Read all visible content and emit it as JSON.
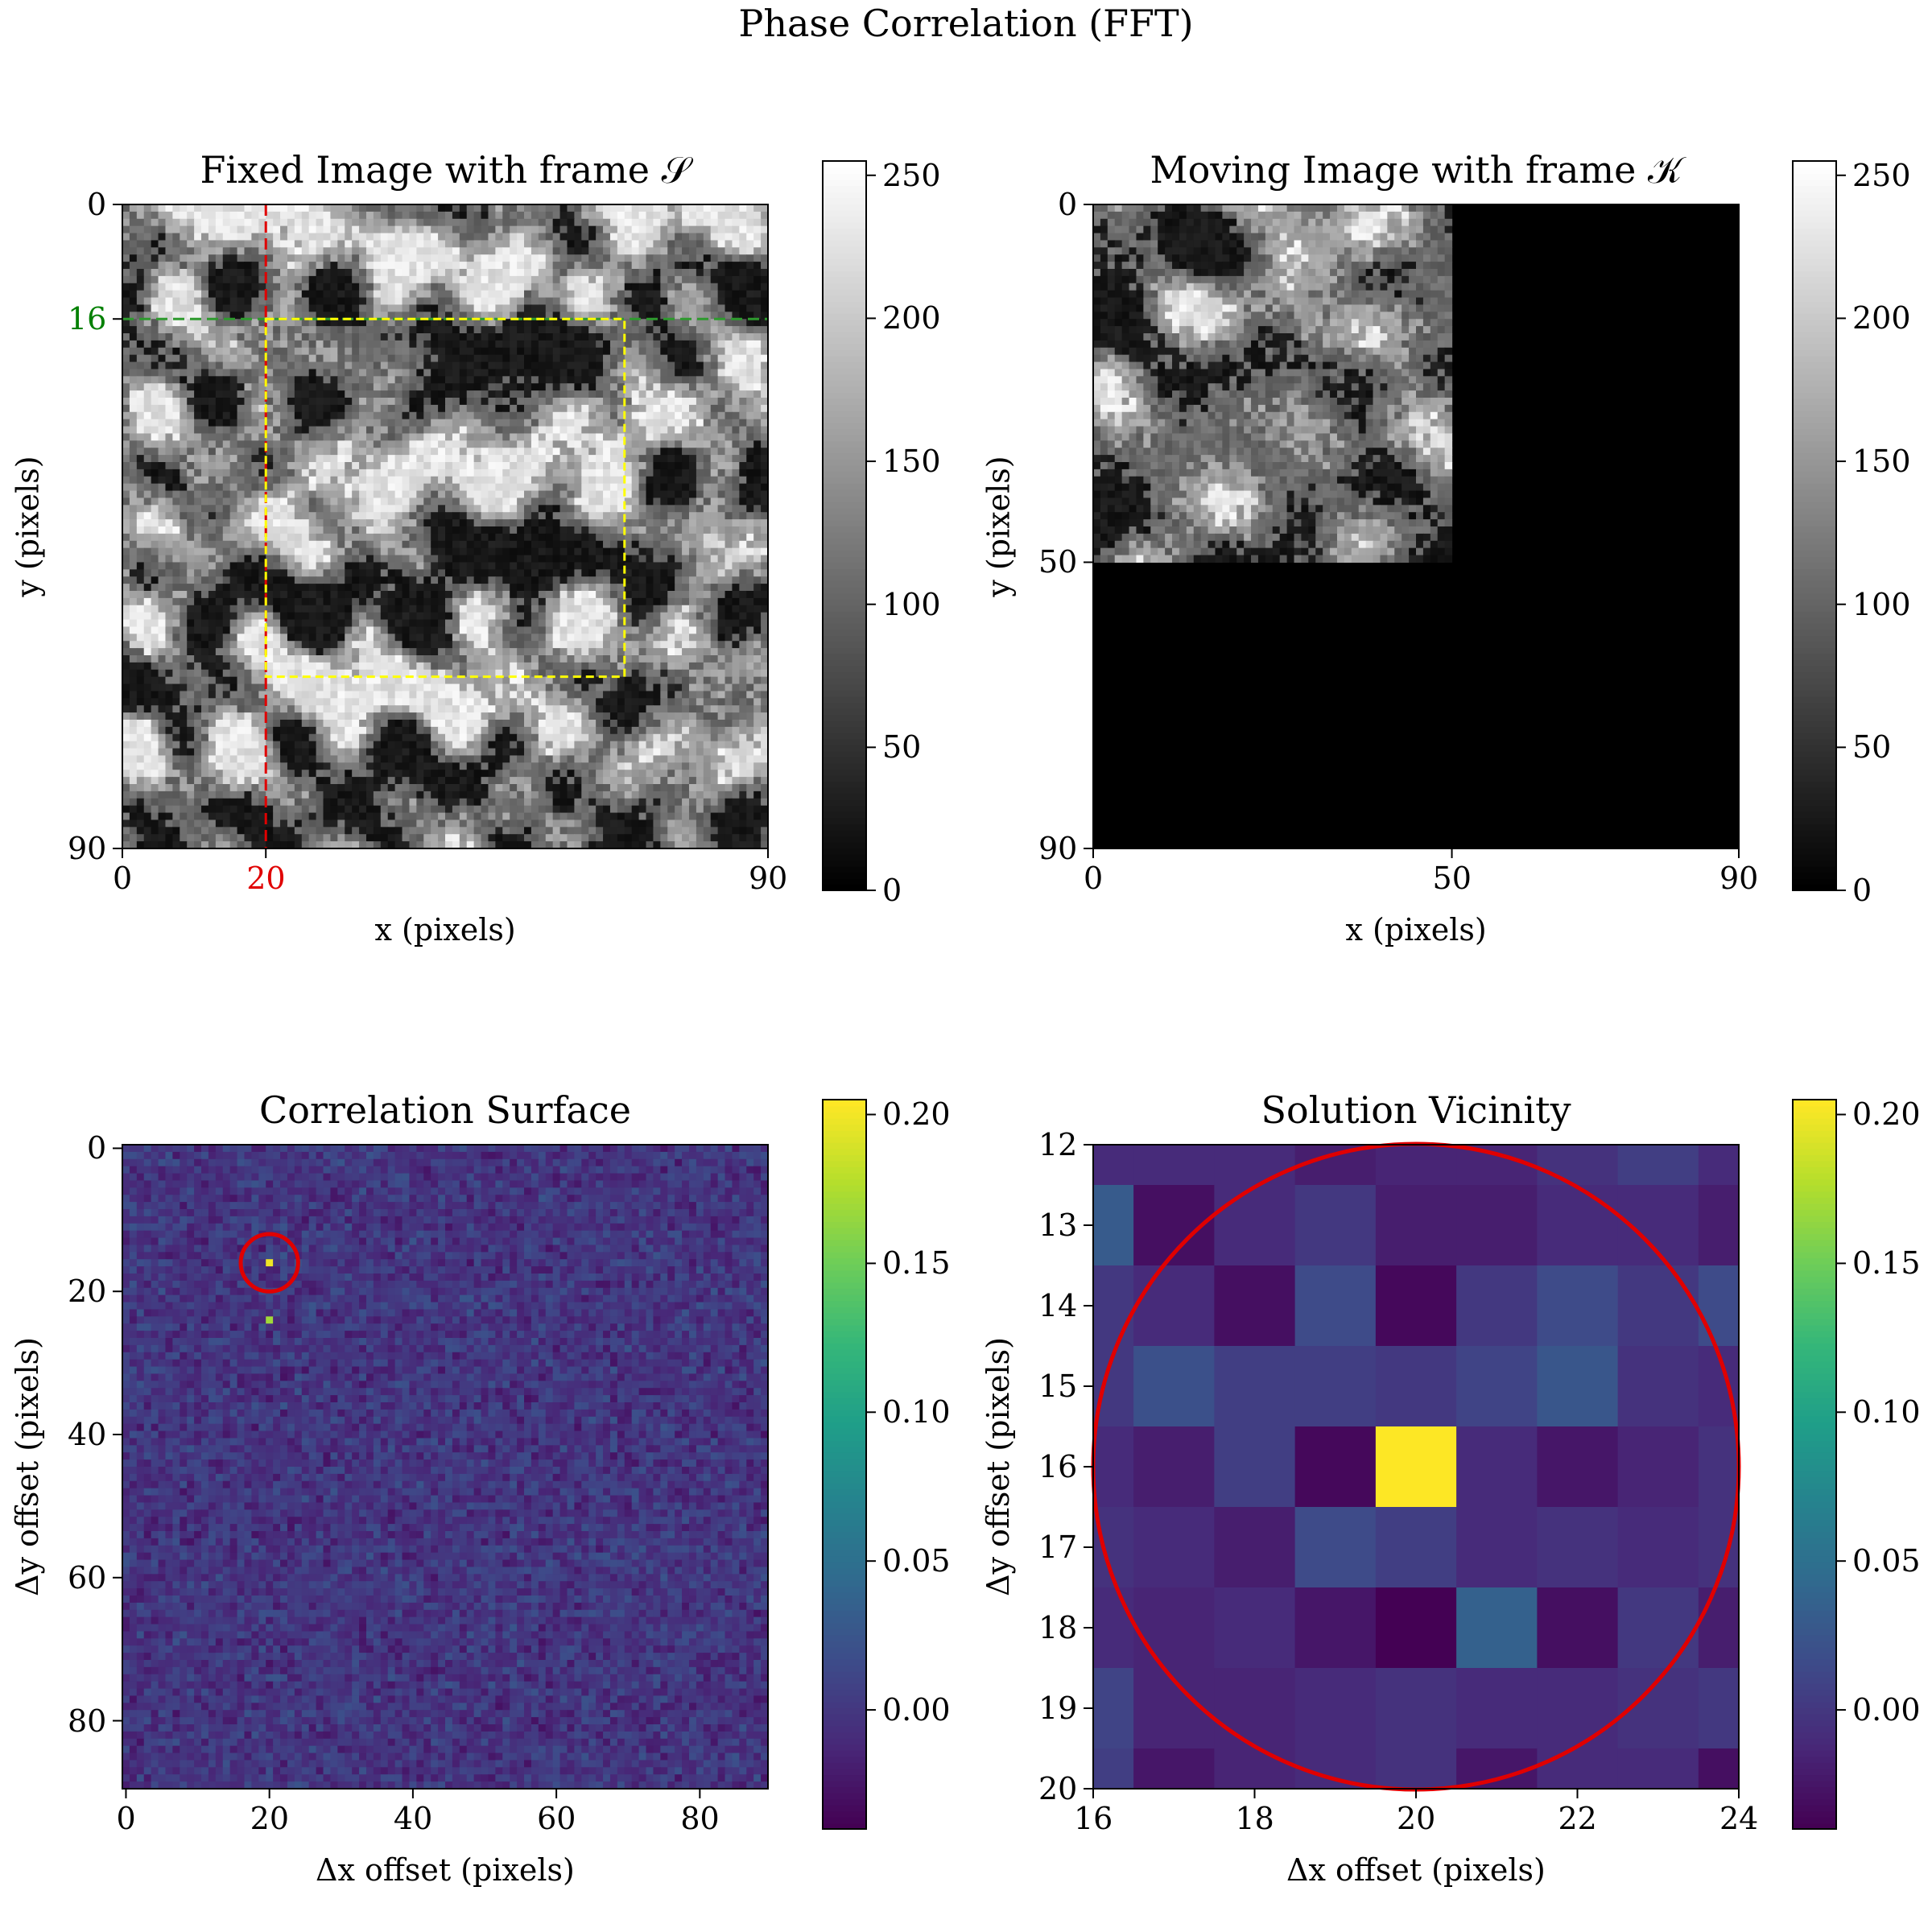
{
  "figure": {
    "suptitle": "Phase Correlation (FFT)"
  },
  "chart_data": [
    {
      "type": "heatmap",
      "panel": "fixed",
      "title": "Fixed Image with frame 𝒮",
      "xlabel": "x (pixels)",
      "ylabel": "y (pixels)",
      "xlim": [
        0,
        90
      ],
      "ylim": [
        90,
        0
      ],
      "xticks": [
        0,
        20,
        90
      ],
      "yticks": [
        0,
        16,
        90
      ],
      "colormap": "gray",
      "colorbar": {
        "vmin": 0,
        "vmax": 255,
        "ticks": [
          0,
          50,
          100,
          150,
          200,
          250
        ]
      },
      "highlighted_ticks": {
        "x": {
          "value": 20,
          "color": "#e00000"
        },
        "y": {
          "value": 16,
          "color": "#008000"
        }
      },
      "overlays": {
        "vline": {
          "x": 20,
          "color": "#e00000"
        },
        "hline": {
          "y": 16,
          "color": "#2e9a2e"
        },
        "frame": {
          "x": [
            20,
            70
          ],
          "y": [
            16,
            66
          ],
          "color": "#ffff00"
        }
      },
      "description": "90x90 grayscale textured image"
    },
    {
      "type": "heatmap",
      "panel": "moving",
      "title": "Moving Image with frame 𝒦",
      "xlabel": "x (pixels)",
      "ylabel": "y (pixels)",
      "xlim": [
        0,
        90
      ],
      "ylim": [
        90,
        0
      ],
      "xticks": [
        0,
        50,
        90
      ],
      "yticks": [
        0,
        50,
        90
      ],
      "colormap": "gray",
      "colorbar": {
        "vmin": 0,
        "vmax": 255,
        "ticks": [
          0,
          50,
          100,
          150,
          200,
          250
        ]
      },
      "content_region": {
        "x": [
          0,
          50
        ],
        "y": [
          0,
          50
        ]
      },
      "description": "50x50 crop of the fixed image in the top-left, rest zero"
    },
    {
      "type": "heatmap",
      "panel": "correlation",
      "title": "Correlation Surface",
      "xlabel": "Δx offset (pixels)",
      "ylabel": "Δy offset (pixels)",
      "xlim": [
        0,
        90
      ],
      "ylim": [
        90,
        0
      ],
      "xticks": [
        0,
        20,
        40,
        60,
        80
      ],
      "yticks": [
        0,
        20,
        40,
        60,
        80
      ],
      "colormap": "viridis",
      "colorbar": {
        "vmin": -0.04,
        "vmax": 0.205,
        "ticks": [
          0.0,
          0.05,
          0.1,
          0.15,
          0.2
        ],
        "ticklabels": [
          "0.00",
          "0.05",
          "0.10",
          "0.15",
          "0.20"
        ]
      },
      "peaks": [
        {
          "dx": 20,
          "dy": 16,
          "value": 0.2
        },
        {
          "dx": 20,
          "dy": 24,
          "value": 0.17
        }
      ],
      "circle": {
        "cx": 20,
        "cy": 16,
        "r": 4,
        "color": "#e00000"
      }
    },
    {
      "type": "heatmap",
      "panel": "vicinity",
      "title": "Solution Vicinity",
      "xlabel": "Δx offset (pixels)",
      "ylabel": "Δy offset (pixels)",
      "xlim": [
        16,
        24
      ],
      "ylim": [
        20,
        12
      ],
      "xticks": [
        16,
        18,
        20,
        22,
        24
      ],
      "yticks": [
        12,
        13,
        14,
        15,
        16,
        17,
        18,
        19,
        20
      ],
      "colormap": "viridis",
      "colorbar": {
        "vmin": -0.04,
        "vmax": 0.205,
        "ticks": [
          0.0,
          0.05,
          0.1,
          0.15,
          0.2
        ],
        "ticklabels": [
          "0.00",
          "0.05",
          "0.10",
          "0.15",
          "0.20"
        ]
      },
      "grid_x": [
        16,
        17,
        18,
        19,
        20,
        21,
        22,
        23,
        24
      ],
      "grid_y": [
        12,
        13,
        14,
        15,
        16,
        17,
        18,
        19,
        20
      ],
      "values": [
        [
          -0.01,
          -0.01,
          -0.01,
          -0.02,
          -0.015,
          -0.015,
          -0.005,
          0.005,
          -0.01
        ],
        [
          0.03,
          -0.03,
          -0.01,
          0.0,
          -0.02,
          -0.02,
          -0.01,
          -0.01,
          -0.02
        ],
        [
          0.0,
          -0.01,
          -0.03,
          0.015,
          -0.035,
          0.0,
          0.015,
          0.0,
          0.015
        ],
        [
          0.0,
          0.02,
          0.005,
          0.005,
          0.0,
          0.01,
          0.025,
          -0.005,
          -0.01
        ],
        [
          -0.01,
          -0.02,
          0.005,
          -0.035,
          0.205,
          -0.01,
          -0.025,
          -0.015,
          -0.005
        ],
        [
          -0.005,
          -0.01,
          -0.02,
          0.015,
          0.005,
          -0.01,
          -0.005,
          -0.01,
          -0.005
        ],
        [
          -0.01,
          -0.015,
          -0.01,
          -0.025,
          -0.04,
          0.035,
          -0.03,
          0.0,
          -0.02
        ],
        [
          0.01,
          -0.015,
          -0.015,
          -0.01,
          -0.005,
          -0.01,
          -0.01,
          -0.005,
          0.0
        ],
        [
          0.005,
          -0.025,
          -0.015,
          -0.01,
          -0.005,
          -0.025,
          -0.01,
          -0.01,
          -0.03
        ]
      ],
      "circle": {
        "cx": 20,
        "cy": 16,
        "r": 4,
        "color": "#e00000"
      }
    }
  ]
}
